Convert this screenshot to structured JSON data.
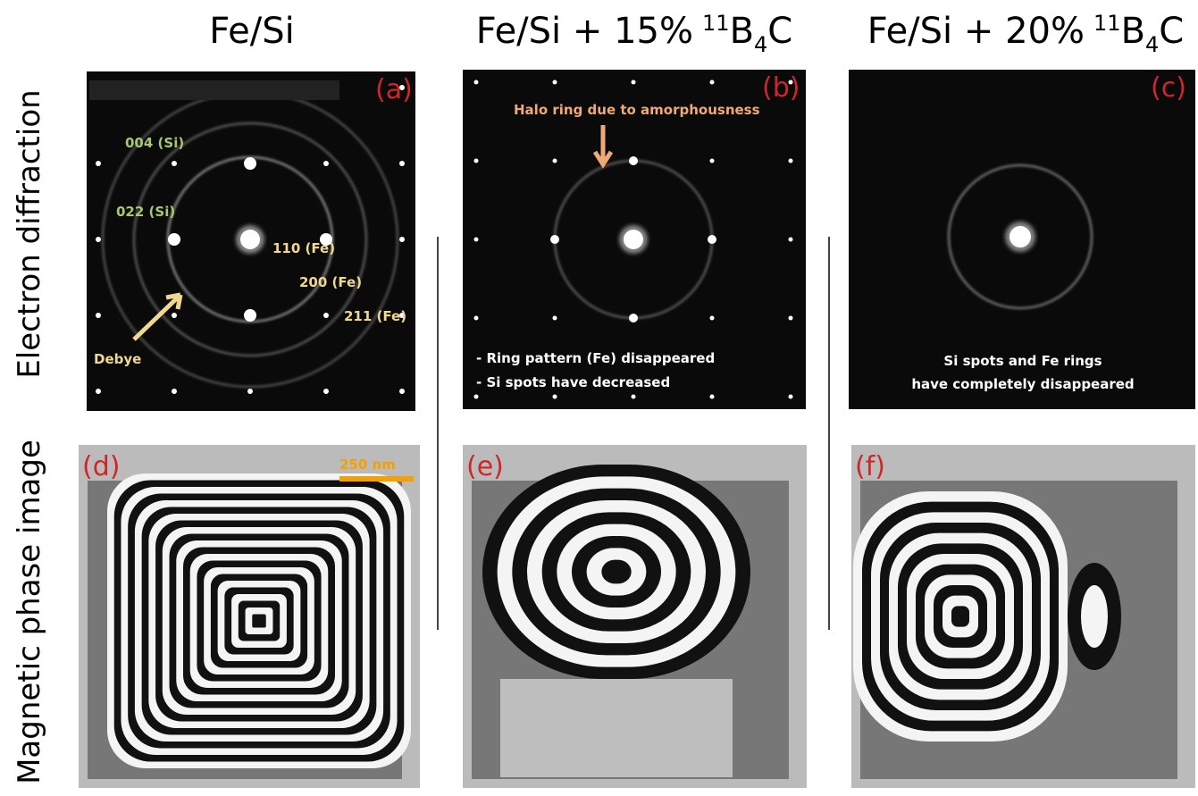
{
  "columns": [
    {
      "title": {
        "main": "Fe/Si"
      }
    },
    {
      "title": {
        "main": "Fe/Si + 15%",
        "sup": "11",
        "base": "B",
        "sub": "4",
        "end": "C"
      }
    },
    {
      "title": {
        "main": "Fe/Si + 20%",
        "sup": "11",
        "base": "B",
        "sub": "4",
        "end": "C"
      }
    }
  ],
  "rows": [
    "Electron diffraction",
    "Magnetic phase image"
  ],
  "panels": [
    {
      "label": "(a)",
      "annotations": [
        "004 (Si)",
        "022 (Si)",
        "110 (Fe)",
        "200 (Fe)",
        "211 (Fe)",
        "Debye"
      ]
    },
    {
      "label": "(b)",
      "annotations": [
        "Halo ring due to amorphousness",
        "- Ring pattern (Fe) disappeared",
        "- Si spots have decreased"
      ]
    },
    {
      "label": "(c)",
      "annotations": [
        "Si spots and Fe rings",
        "have completely disappeared"
      ]
    },
    {
      "label": "(d)",
      "annotations": [
        "250 nm"
      ]
    },
    {
      "label": "(e)",
      "annotations": []
    },
    {
      "label": "(f)",
      "annotations": []
    }
  ]
}
